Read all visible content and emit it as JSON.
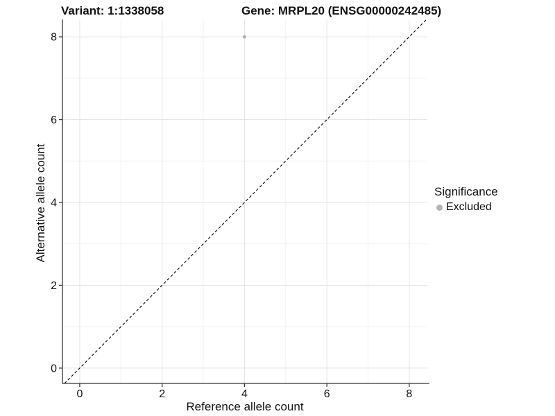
{
  "titles": {
    "variant": "Variant: 1:1338058",
    "gene": "Gene: MRPL20 (ENSG00000242485)"
  },
  "chart_data": {
    "type": "scatter",
    "xlabel": "Reference allele count",
    "ylabel": "Alternative allele count",
    "xlim": [
      -0.42,
      8.44
    ],
    "ylim": [
      -0.37,
      8.42
    ],
    "x_ticks": [
      0,
      2,
      4,
      6,
      8
    ],
    "y_ticks": [
      0,
      2,
      4,
      6,
      8
    ],
    "x_minor_breaks": [
      1,
      3,
      5,
      7
    ],
    "y_minor_breaks": [
      1,
      3,
      5,
      7
    ],
    "grid": "on",
    "points": [
      {
        "x": 4,
        "y": 8,
        "significance": "Excluded"
      }
    ],
    "identity_line": {
      "type": "abline",
      "slope": 1,
      "intercept": 0,
      "style": "dashed",
      "color": "#000000"
    },
    "legend": {
      "position": "right",
      "title": "Significance",
      "items": [
        {
          "label": "Excluded",
          "color": "#b5b5b5"
        }
      ]
    },
    "colors": {
      "background": "#ffffff",
      "grid_major": "#e4e4e4",
      "grid_minor": "#f2f2f2",
      "axis_line": "#333333",
      "point": "#b3b3b3",
      "text": "#111111"
    }
  }
}
